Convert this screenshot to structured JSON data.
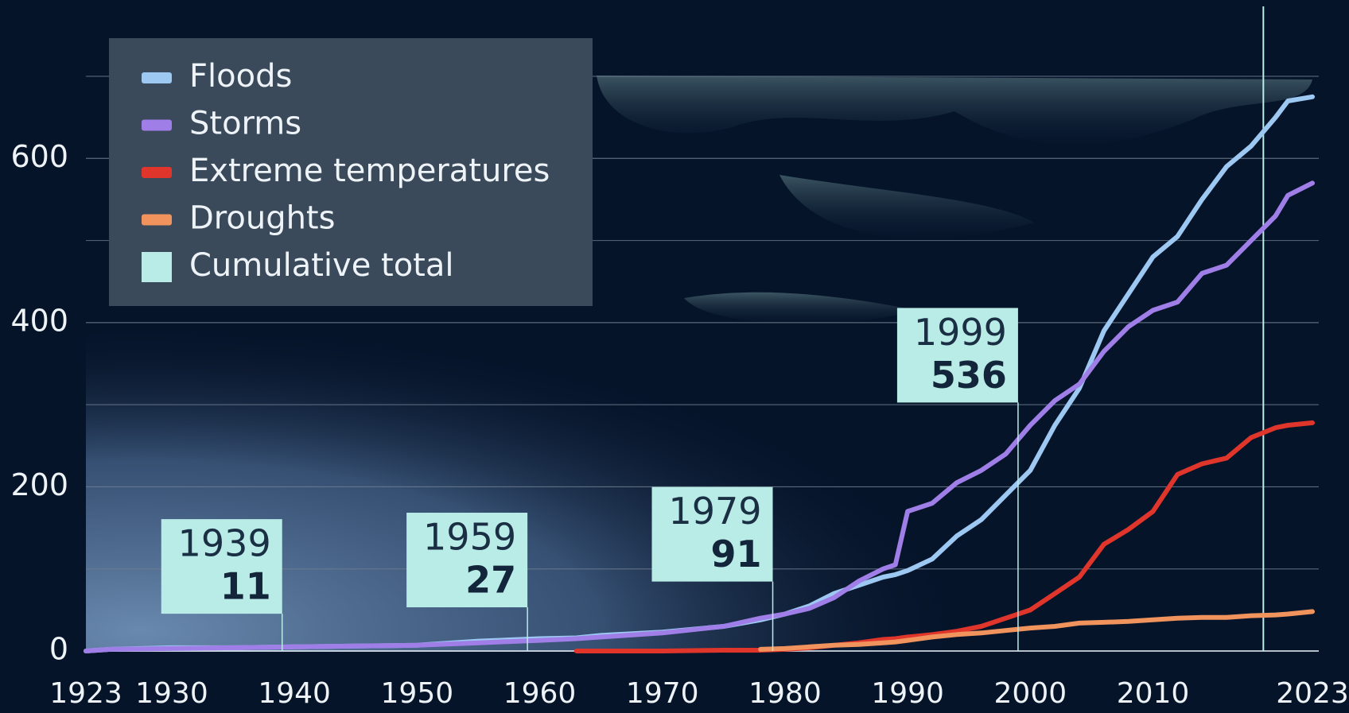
{
  "chart_data": {
    "type": "line",
    "x": [
      1923,
      1925,
      1930,
      1935,
      1940,
      1945,
      1950,
      1955,
      1960,
      1963,
      1965,
      1970,
      1975,
      1978,
      1980,
      1982,
      1984,
      1986,
      1988,
      1989,
      1990,
      1992,
      1994,
      1996,
      1998,
      2000,
      2002,
      2004,
      2006,
      2008,
      2010,
      2012,
      2014,
      2016,
      2018,
      2020,
      2021,
      2023
    ],
    "series": [
      {
        "name": "Floods",
        "color": "#9cc8f2",
        "values": [
          0,
          2,
          4,
          4,
          5,
          6,
          7,
          12,
          15,
          16,
          19,
          23,
          30,
          38,
          45,
          55,
          70,
          80,
          90,
          93,
          98,
          112,
          140,
          160,
          190,
          220,
          275,
          320,
          390,
          435,
          480,
          505,
          550,
          590,
          615,
          650,
          670,
          675
        ]
      },
      {
        "name": "Storms",
        "color": "#a07ee8",
        "values": [
          0,
          2,
          3,
          4,
          5,
          6,
          7,
          10,
          13,
          15,
          17,
          22,
          30,
          40,
          45,
          52,
          65,
          85,
          100,
          105,
          170,
          180,
          205,
          220,
          240,
          275,
          305,
          325,
          365,
          395,
          415,
          425,
          460,
          470,
          500,
          530,
          555,
          570
        ]
      },
      {
        "name": "Extreme temperatures",
        "color": "#e0352b",
        "values": [
          null,
          null,
          null,
          null,
          null,
          null,
          null,
          null,
          null,
          0,
          0,
          0,
          1,
          1,
          2,
          4,
          7,
          10,
          14,
          15,
          17,
          20,
          24,
          30,
          40,
          50,
          70,
          90,
          130,
          148,
          170,
          215,
          228,
          235,
          260,
          272,
          275,
          278
        ]
      },
      {
        "name": "Droughts",
        "color": "#f0935c",
        "values": [
          null,
          null,
          null,
          null,
          null,
          null,
          null,
          null,
          null,
          null,
          null,
          null,
          null,
          2,
          3,
          5,
          7,
          8,
          10,
          11,
          13,
          17,
          20,
          22,
          25,
          28,
          30,
          34,
          35,
          36,
          38,
          40,
          41,
          41,
          43,
          44,
          45,
          48
        ]
      }
    ],
    "cumulative": {
      "name": "Cumulative total",
      "color": "#b9ece6",
      "points": [
        {
          "year": 1939,
          "total": 11
        },
        {
          "year": 1959,
          "total": 27
        },
        {
          "year": 1979,
          "total": 91
        },
        {
          "year": 1999,
          "total": 536
        }
      ]
    },
    "xlim": [
      1923,
      2023
    ],
    "xticks": [
      1923,
      1930,
      1940,
      1950,
      1960,
      1970,
      1980,
      1990,
      2000,
      2010,
      2023
    ],
    "ylim": [
      0,
      700
    ],
    "yticks": [
      0,
      200,
      400,
      600
    ],
    "grid_yticks": [
      100,
      300,
      500,
      700
    ],
    "highlight_x": 2019,
    "grid": true
  }
}
